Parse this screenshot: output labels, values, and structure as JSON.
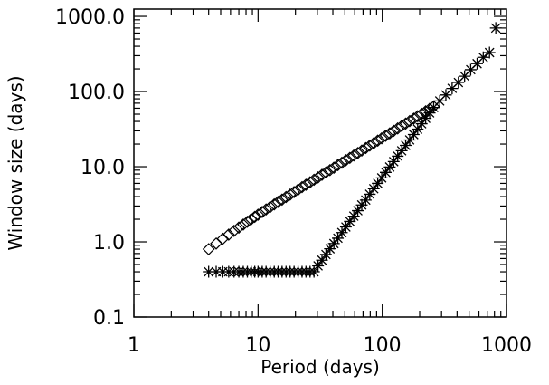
{
  "chart_data": {
    "type": "scatter",
    "title": "",
    "xlabel": "Period (days)",
    "ylabel": "Window size (days)",
    "xscale": "log",
    "yscale": "log",
    "xlim": [
      1,
      1000
    ],
    "ylim": [
      0.1,
      1250
    ],
    "xticks": [
      1,
      10,
      100,
      1000
    ],
    "xtick_labels": [
      "1",
      "10",
      "100",
      "1000"
    ],
    "yticks": [
      0.1,
      1,
      10,
      100,
      1000
    ],
    "ytick_labels": [
      "0.1",
      "1.0",
      "10.0",
      "100.0",
      "1000.0"
    ],
    "grid": false,
    "legend": "none",
    "colors": {
      "marker": "#000000",
      "axis": "#000000",
      "background": "#ffffff"
    },
    "series": [
      {
        "marker": "diamond",
        "x": [
          4.0,
          4.6,
          5.2,
          5.8,
          6.4,
          7.0,
          7.6,
          8.2,
          8.8,
          9.4,
          10.0,
          10.8,
          11.6,
          12.5,
          13.5,
          14.5,
          15.6,
          16.8,
          18.1,
          19.5,
          21.0,
          22.6,
          24.3,
          26.2,
          28.2,
          30.4,
          32.7,
          35.2,
          37.9,
          40.8,
          43.9,
          47.3,
          50.9,
          54.8,
          59.0,
          63.5,
          68.4,
          73.6,
          79.3,
          85.4,
          91.9,
          99.0,
          106.6,
          114.8,
          123.6,
          133.1,
          143.3,
          154.3,
          166.2,
          179.0,
          192.7,
          207.5,
          223.5,
          240.7,
          259.2
        ],
        "y": [
          0.8,
          0.95,
          1.1,
          1.25,
          1.4,
          1.55,
          1.7,
          1.85,
          2.0,
          2.15,
          2.3,
          2.5,
          2.7,
          2.9,
          3.15,
          3.4,
          3.65,
          3.95,
          4.25,
          4.6,
          4.95,
          5.35,
          5.75,
          6.2,
          6.7,
          7.2,
          7.8,
          8.4,
          9.0,
          9.7,
          10.5,
          11.3,
          12.2,
          13.1,
          14.1,
          15.2,
          16.4,
          17.7,
          19.1,
          20.6,
          22.2,
          23.9,
          25.8,
          27.8,
          30.0,
          32.3,
          34.8,
          37.5,
          40.5,
          43.6,
          47.0,
          50.6,
          54.5,
          58.8,
          63.3
        ]
      },
      {
        "marker": "asterisk",
        "x": [
          4.0,
          4.6,
          5.2,
          5.8,
          6.4,
          7.0,
          7.6,
          8.2,
          8.8,
          9.4,
          10.0,
          10.8,
          11.6,
          12.5,
          13.5,
          14.5,
          15.6,
          16.8,
          18.1,
          19.5,
          21.0,
          22.6,
          24.3,
          26.2,
          28.2,
          30.4,
          32.7,
          35.2,
          37.9,
          40.8,
          43.9,
          47.3,
          50.9,
          54.8,
          59.0,
          63.5,
          68.4,
          73.6,
          79.3,
          85.4,
          91.9,
          99.0,
          106.6,
          114.8,
          123.6,
          133.1,
          143.3,
          154.3,
          166.2,
          179.0,
          192.7,
          207.5,
          223.5,
          240.7,
          259.2,
          290,
          325,
          365,
          410,
          460,
          515,
          580,
          650,
          730,
          820
        ],
        "y": [
          0.4,
          0.4,
          0.4,
          0.4,
          0.4,
          0.4,
          0.4,
          0.4,
          0.4,
          0.4,
          0.4,
          0.4,
          0.4,
          0.4,
          0.4,
          0.4,
          0.4,
          0.4,
          0.4,
          0.4,
          0.4,
          0.4,
          0.4,
          0.4,
          0.4,
          0.48,
          0.57,
          0.68,
          0.81,
          0.95,
          1.12,
          1.33,
          1.58,
          1.87,
          2.2,
          2.6,
          3.1,
          3.6,
          4.3,
          5.1,
          6.0,
          7.1,
          8.4,
          9.9,
          11.7,
          13.8,
          16.3,
          19.2,
          22.7,
          26.8,
          31.6,
          37.3,
          44.0,
          52.0,
          61.3,
          75,
          90,
          110,
          132,
          160,
          195,
          235,
          285,
          330,
          700
        ]
      }
    ]
  }
}
